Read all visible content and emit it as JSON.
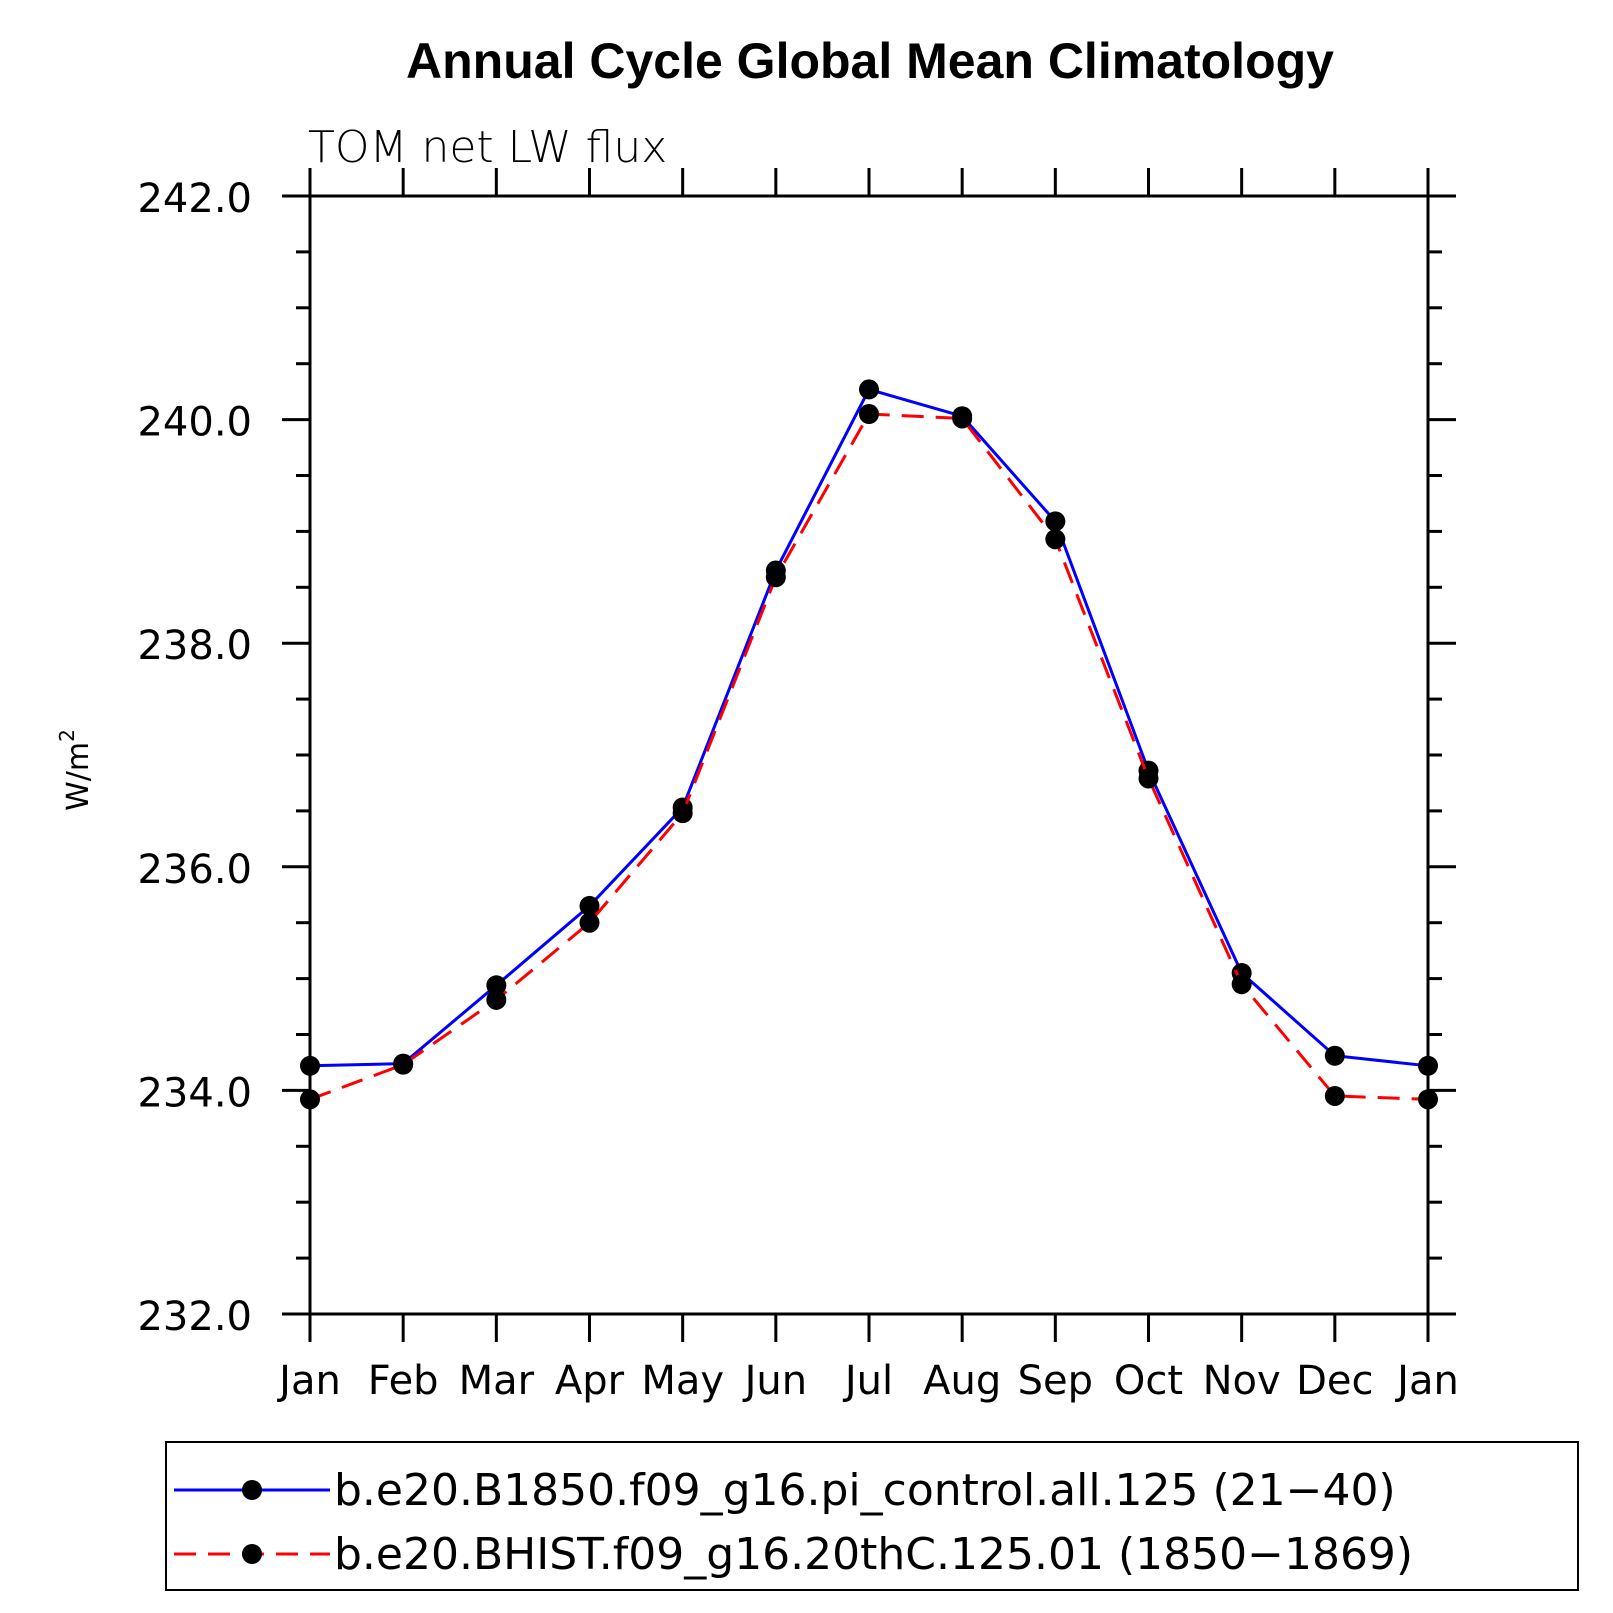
{
  "chart_data": {
    "type": "line",
    "title": "Annual Cycle Global Mean Climatology",
    "subtitle": "TOM net LW flux",
    "ylabel": "W/m",
    "ylabel_sup": "2",
    "xlabel": "",
    "ylim": [
      232.0,
      242.0
    ],
    "yticks": [
      "232.0",
      "234.0",
      "236.0",
      "238.0",
      "240.0",
      "242.0"
    ],
    "categories": [
      "Jan",
      "Feb",
      "Mar",
      "Apr",
      "May",
      "Jun",
      "Jul",
      "Aug",
      "Sep",
      "Oct",
      "Nov",
      "Dec",
      "Jan"
    ],
    "series": [
      {
        "name": "b.e20.B1850.f09_g16.pi_control.all.125 (21−40)",
        "color": "#0000ff",
        "dash": "solid",
        "values": [
          234.22,
          234.24,
          234.94,
          235.65,
          236.53,
          238.65,
          240.27,
          240.03,
          239.09,
          236.86,
          235.05,
          234.31,
          234.22
        ]
      },
      {
        "name": "b.e20.BHIST.f09_g16.20thC.125.01 (1850−1869)",
        "color": "#ff0000",
        "dash": "dashed",
        "values": [
          233.92,
          234.23,
          234.81,
          235.5,
          236.48,
          238.59,
          240.05,
          240.01,
          238.93,
          236.79,
          234.95,
          233.95,
          233.92
        ]
      }
    ],
    "legend_position": "bottom",
    "grid": false
  }
}
